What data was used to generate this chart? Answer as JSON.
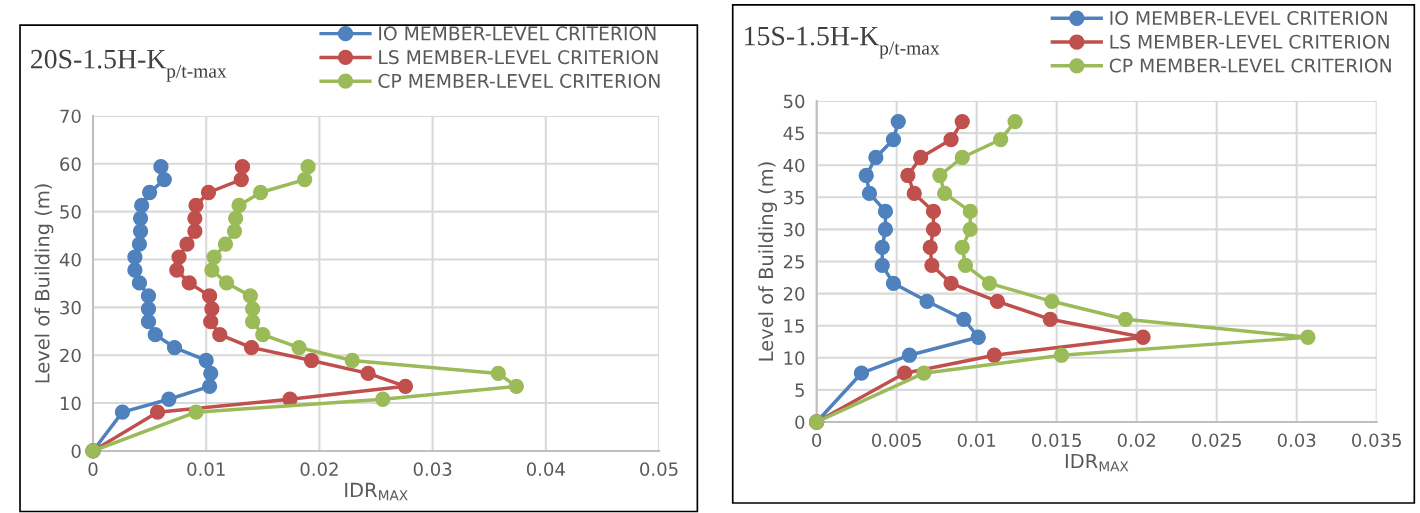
{
  "chart_data": [
    {
      "type": "line",
      "title": "20S-1.5H-K$_{p/t-max}$",
      "xlabel": "IDR$_{MAX}$",
      "ylabel": "Level of Building (m)",
      "legend": "top right",
      "grid": true,
      "marker": "circle",
      "line_style": "solid",
      "xlim": [
        0,
        0.05
      ],
      "xticks": [
        0,
        0.01,
        0.02,
        0.03,
        0.04,
        0.05
      ],
      "ylim": [
        0,
        70
      ],
      "yticks": [
        0,
        10,
        20,
        30,
        40,
        50,
        60,
        70
      ],
      "series": [
        {
          "name": "IO MEMBER-LEVEL CRITERION",
          "color": "#4f81bd",
          "x": [
            0,
            0.0026,
            0.0067,
            0.0103,
            0.0104,
            0.01,
            0.0072,
            0.0055,
            0.0049,
            0.0049,
            0.0049,
            0.0041,
            0.0037,
            0.0037,
            0.0041,
            0.0042,
            0.0042,
            0.0043,
            0.005,
            0.0063,
            0.006
          ],
          "values": [
            0,
            8.1,
            10.8,
            13.5,
            16.2,
            18.9,
            21.6,
            24.3,
            27,
            29.7,
            32.4,
            35.1,
            37.8,
            40.5,
            43.2,
            45.9,
            48.6,
            51.3,
            54,
            56.7,
            59.4
          ]
        },
        {
          "name": "LS MEMBER-LEVEL CRITERION",
          "color": "#c0504d",
          "x": [
            0,
            0.0057,
            0.0174,
            0.0276,
            0.0243,
            0.0193,
            0.014,
            0.0112,
            0.0104,
            0.0105,
            0.0103,
            0.0085,
            0.0074,
            0.0076,
            0.0083,
            0.009,
            0.009,
            0.0091,
            0.0102,
            0.0131,
            0.0132
          ],
          "values": [
            0,
            8.1,
            10.8,
            13.5,
            16.2,
            18.9,
            21.6,
            24.3,
            27,
            29.7,
            32.4,
            35.1,
            37.8,
            40.5,
            43.2,
            45.9,
            48.6,
            51.3,
            54,
            56.7,
            59.4
          ]
        },
        {
          "name": "CP MEMBER-LEVEL CRITERION",
          "color": "#9bbb59",
          "x": [
            0,
            0.0091,
            0.0256,
            0.0374,
            0.0358,
            0.0229,
            0.0182,
            0.015,
            0.0141,
            0.0141,
            0.0139,
            0.0118,
            0.0105,
            0.0107,
            0.0117,
            0.0125,
            0.0126,
            0.0129,
            0.0148,
            0.0187,
            0.019
          ],
          "values": [
            0,
            8.1,
            10.8,
            13.5,
            16.2,
            18.9,
            21.6,
            24.3,
            27,
            29.7,
            32.4,
            35.1,
            37.8,
            40.5,
            43.2,
            45.9,
            48.6,
            51.3,
            54,
            56.7,
            59.4
          ]
        }
      ]
    },
    {
      "type": "line",
      "title": "15S-1.5H-K$_{p/t-max}$",
      "xlabel": "IDR$_{MAX}$",
      "ylabel": "Level of Building (m)",
      "legend": "top right",
      "grid": true,
      "marker": "circle",
      "line_style": "solid",
      "xlim": [
        0,
        0.035
      ],
      "xticks": [
        0,
        0.005,
        0.01,
        0.015,
        0.02,
        0.025,
        0.03,
        0.035
      ],
      "ylim": [
        0,
        50
      ],
      "yticks": [
        0,
        5,
        10,
        15,
        20,
        25,
        30,
        35,
        40,
        45,
        50
      ],
      "series": [
        {
          "name": "IO MEMBER-LEVEL CRITERION",
          "color": "#4f81bd",
          "x": [
            0,
            0.0028,
            0.0058,
            0.0101,
            0.0092,
            0.0069,
            0.0048,
            0.0041,
            0.0041,
            0.0043,
            0.0043,
            0.0033,
            0.0031,
            0.0037,
            0.0048,
            0.0051
          ],
          "values": [
            0,
            7.6,
            10.4,
            13.2,
            16,
            18.8,
            21.6,
            24.4,
            27.2,
            30,
            32.8,
            35.6,
            38.4,
            41.2,
            44,
            46.8
          ]
        },
        {
          "name": "LS MEMBER-LEVEL CRITERION",
          "color": "#c0504d",
          "x": [
            0,
            0.0055,
            0.0111,
            0.0204,
            0.0146,
            0.0113,
            0.0084,
            0.0072,
            0.0071,
            0.0073,
            0.0073,
            0.0061,
            0.0057,
            0.0065,
            0.0084,
            0.0091
          ],
          "values": [
            0,
            7.6,
            10.4,
            13.2,
            16,
            18.8,
            21.6,
            24.4,
            27.2,
            30,
            32.8,
            35.6,
            38.4,
            41.2,
            44,
            46.8
          ]
        },
        {
          "name": "CP MEMBER-LEVEL CRITERION",
          "color": "#9bbb59",
          "x": [
            0,
            0.0067,
            0.0153,
            0.0307,
            0.0193,
            0.0147,
            0.0108,
            0.0093,
            0.0091,
            0.0096,
            0.0096,
            0.008,
            0.0077,
            0.0091,
            0.0115,
            0.0124
          ],
          "values": [
            0,
            7.6,
            10.4,
            13.2,
            16,
            18.8,
            21.6,
            24.4,
            27.2,
            30,
            32.8,
            35.6,
            38.4,
            41.2,
            44,
            46.8
          ]
        }
      ]
    }
  ]
}
